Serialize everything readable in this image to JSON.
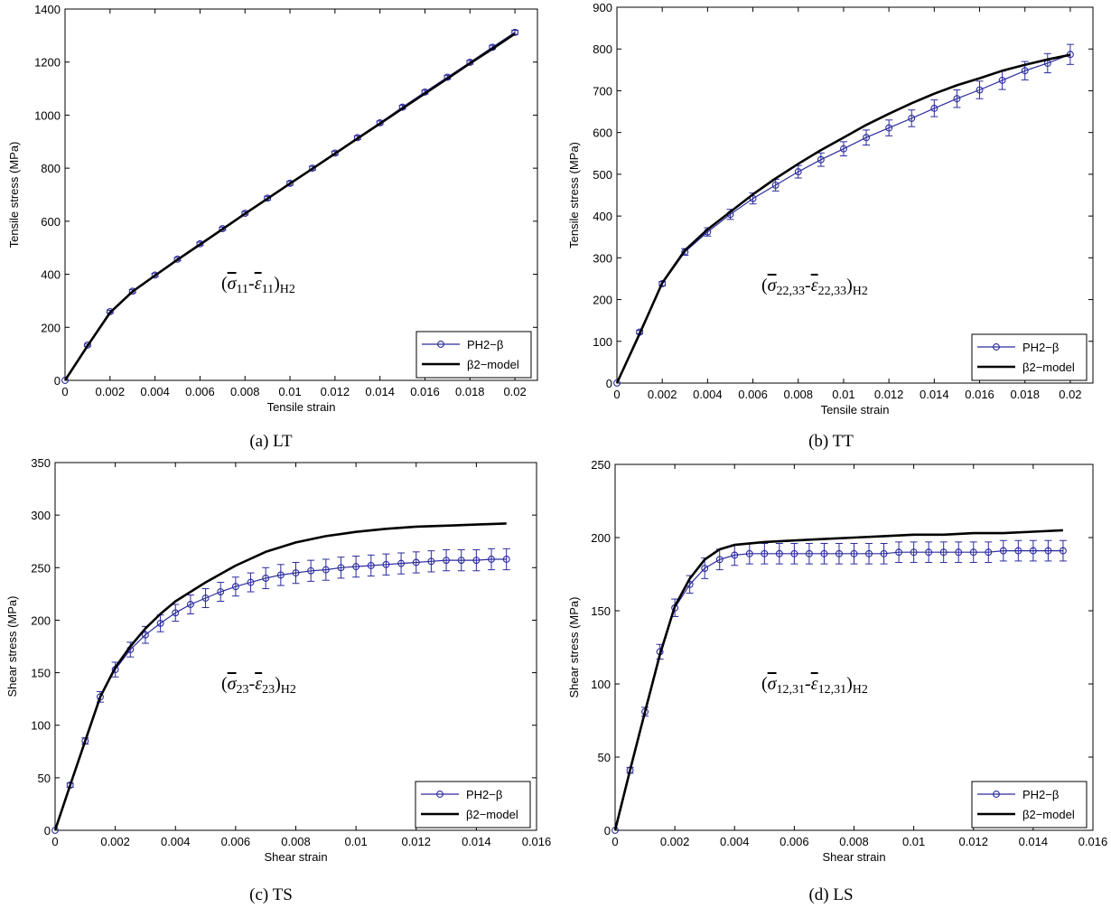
{
  "chart_data": [
    {
      "type": "line",
      "caption": "(a) LT",
      "xlabel": "Tensile strain",
      "ylabel": "Tensile stress (MPa)",
      "xlim": [
        0,
        0.021
      ],
      "ylim": [
        0,
        1400
      ],
      "xticks": [
        0,
        0.002,
        0.004,
        0.006,
        0.008,
        0.01,
        0.012,
        0.014,
        0.016,
        0.018,
        0.02
      ],
      "xtick_labels": [
        "0",
        "0.002",
        "0.004",
        "0.006",
        "0.008",
        "0.01",
        "0.012",
        "0.014",
        "0.016",
        "0.018",
        "0.02"
      ],
      "yticks": [
        0,
        200,
        400,
        600,
        800,
        1000,
        1200,
        1400
      ],
      "ytick_labels": [
        "0",
        "200",
        "400",
        "600",
        "800",
        "1000",
        "1200",
        "1400"
      ],
      "annotation": {
        "sigma": "σ",
        "eps": "ε",
        "sub": "11",
        "tail": "H2"
      },
      "legend": {
        "position": "bottom-right",
        "entries": [
          "PH2−β",
          "β2−model"
        ]
      },
      "series": [
        {
          "name": "PH2−β",
          "color": "#2b2b9e",
          "marker": "circle",
          "x": [
            0,
            0.001,
            0.002,
            0.003,
            0.004,
            0.005,
            0.006,
            0.007,
            0.008,
            0.009,
            0.01,
            0.011,
            0.012,
            0.013,
            0.014,
            0.015,
            0.016,
            0.017,
            0.018,
            0.019,
            0.02
          ],
          "y": [
            0,
            133,
            259,
            336,
            397,
            457,
            515,
            572,
            630,
            687,
            743,
            800,
            857,
            915,
            971,
            1030,
            1087,
            1143,
            1199,
            1256,
            1312
          ],
          "err": [
            0,
            4,
            5,
            6,
            6,
            6,
            6,
            6,
            6,
            7,
            7,
            7,
            7,
            7,
            7,
            7,
            7,
            7,
            7,
            7,
            8
          ]
        },
        {
          "name": "β2−model",
          "color": "#000000",
          "x": [
            0,
            0.001,
            0.002,
            0.003,
            0.004,
            0.005,
            0.006,
            0.007,
            0.008,
            0.009,
            0.01,
            0.011,
            0.012,
            0.013,
            0.014,
            0.015,
            0.016,
            0.017,
            0.018,
            0.019,
            0.02
          ],
          "y": [
            0,
            130,
            255,
            335,
            395,
            455,
            512,
            570,
            628,
            685,
            742,
            798,
            855,
            912,
            968,
            1025,
            1082,
            1138,
            1195,
            1250,
            1307
          ]
        }
      ]
    },
    {
      "type": "line",
      "caption": "(b) TT",
      "xlabel": "Tensile strain",
      "ylabel": "Tensile stress (MPa)",
      "xlim": [
        0,
        0.021
      ],
      "ylim": [
        0,
        900
      ],
      "xticks": [
        0,
        0.002,
        0.004,
        0.006,
        0.008,
        0.01,
        0.012,
        0.014,
        0.016,
        0.018,
        0.02
      ],
      "xtick_labels": [
        "0",
        "0.002",
        "0.004",
        "0.006",
        "0.008",
        "0.01",
        "0.012",
        "0.014",
        "0.016",
        "0.018",
        "0.02"
      ],
      "yticks": [
        0,
        100,
        200,
        300,
        400,
        500,
        600,
        700,
        800,
        900
      ],
      "ytick_labels": [
        "0",
        "100",
        "200",
        "300",
        "400",
        "500",
        "600",
        "700",
        "800",
        "900"
      ],
      "annotation": {
        "sigma": "σ",
        "eps": "ε",
        "sub": "22,33",
        "tail": "H2"
      },
      "legend": {
        "position": "bottom-right",
        "entries": [
          "PH2−β",
          "β2−model"
        ]
      },
      "series": [
        {
          "name": "PH2−β",
          "color": "#2b2b9e",
          "marker": "circle",
          "x": [
            0,
            0.001,
            0.002,
            0.003,
            0.004,
            0.005,
            0.006,
            0.007,
            0.008,
            0.009,
            0.01,
            0.011,
            0.012,
            0.013,
            0.014,
            0.015,
            0.016,
            0.017,
            0.018,
            0.019,
            0.02
          ],
          "y": [
            0,
            122,
            238,
            314,
            362,
            404,
            442,
            474,
            506,
            535,
            561,
            588,
            611,
            634,
            658,
            681,
            702,
            725,
            748,
            766,
            787
          ],
          "err": [
            0,
            4,
            5,
            8,
            10,
            12,
            13,
            14,
            15,
            16,
            17,
            18,
            19,
            20,
            20,
            21,
            21,
            22,
            22,
            23,
            24
          ]
        },
        {
          "name": "β2−model",
          "color": "#000000",
          "x": [
            0,
            0.001,
            0.002,
            0.003,
            0.004,
            0.005,
            0.006,
            0.007,
            0.008,
            0.009,
            0.01,
            0.011,
            0.012,
            0.013,
            0.014,
            0.015,
            0.016,
            0.017,
            0.018,
            0.019,
            0.02
          ],
          "y": [
            0,
            118,
            240,
            318,
            368,
            410,
            452,
            490,
            525,
            558,
            588,
            618,
            645,
            670,
            693,
            713,
            730,
            748,
            762,
            775,
            786
          ]
        }
      ]
    },
    {
      "type": "line",
      "caption": "(c) TS",
      "xlabel": "Shear strain",
      "ylabel": "Shear stress (MPa)",
      "xlim": [
        0,
        0.016
      ],
      "ylim": [
        0,
        350
      ],
      "xticks": [
        0,
        0.002,
        0.004,
        0.006,
        0.008,
        0.01,
        0.012,
        0.014,
        0.016
      ],
      "xtick_labels": [
        "0",
        "0.002",
        "0.004",
        "0.006",
        "0.008",
        "0.01",
        "0.012",
        "0.014",
        "0.016"
      ],
      "yticks": [
        0,
        50,
        100,
        150,
        200,
        250,
        300,
        350
      ],
      "ytick_labels": [
        "0",
        "50",
        "100",
        "150",
        "200",
        "250",
        "300",
        "350"
      ],
      "annotation": {
        "sigma": "σ",
        "eps": "ε",
        "sub": "23",
        "tail": "H2"
      },
      "legend": {
        "position": "bottom-right",
        "entries": [
          "PH2−β",
          "β2−model"
        ]
      },
      "series": [
        {
          "name": "PH2−β",
          "color": "#2b2b9e",
          "marker": "circle",
          "x": [
            0,
            0.0005,
            0.001,
            0.0015,
            0.002,
            0.0025,
            0.003,
            0.0035,
            0.004,
            0.0045,
            0.005,
            0.0055,
            0.006,
            0.0065,
            0.007,
            0.0075,
            0.008,
            0.0085,
            0.009,
            0.0095,
            0.01,
            0.0105,
            0.011,
            0.0115,
            0.012,
            0.0125,
            0.013,
            0.0135,
            0.014,
            0.0145,
            0.015
          ],
          "y": [
            0,
            43,
            85,
            127,
            153,
            172,
            186,
            197,
            207,
            215,
            221,
            227,
            232,
            236,
            240,
            243,
            245,
            247,
            248,
            250,
            251,
            252,
            253,
            254,
            255,
            256,
            257,
            257,
            257,
            258,
            258
          ],
          "err": [
            0,
            2,
            3,
            5,
            7,
            7,
            8,
            8,
            8,
            9,
            9,
            9,
            9,
            9,
            10,
            10,
            10,
            10,
            10,
            10,
            10,
            10,
            10,
            10,
            10,
            10,
            10,
            10,
            10,
            10,
            10
          ]
        },
        {
          "name": "β2−model",
          "color": "#000000",
          "x": [
            0,
            0.0005,
            0.001,
            0.0015,
            0.002,
            0.0025,
            0.003,
            0.0035,
            0.004,
            0.005,
            0.006,
            0.007,
            0.008,
            0.009,
            0.01,
            0.011,
            0.012,
            0.013,
            0.014,
            0.015
          ],
          "y": [
            0,
            43,
            85,
            127,
            155,
            175,
            192,
            206,
            218,
            236,
            252,
            265,
            274,
            280,
            284,
            287,
            289,
            290,
            291,
            292
          ]
        }
      ]
    },
    {
      "type": "line",
      "caption": "(d) LS",
      "xlabel": "Shear strain",
      "ylabel": "Shear stress (MPa)",
      "xlim": [
        0,
        0.016
      ],
      "ylim": [
        0,
        250
      ],
      "xticks": [
        0,
        0.002,
        0.004,
        0.006,
        0.008,
        0.01,
        0.012,
        0.014,
        0.016
      ],
      "xtick_labels": [
        "0",
        "0.002",
        "0.004",
        "0.006",
        "0.008",
        "0.01",
        "0.012",
        "0.014",
        "0.016"
      ],
      "yticks": [
        0,
        50,
        100,
        150,
        200,
        250
      ],
      "ytick_labels": [
        "0",
        "50",
        "100",
        "150",
        "200",
        "250"
      ],
      "annotation": {
        "sigma": "σ",
        "eps": "ε",
        "sub": "12,31",
        "tail": "H2"
      },
      "legend": {
        "position": "bottom-right",
        "entries": [
          "PH2−β",
          "β2−model"
        ]
      },
      "series": [
        {
          "name": "PH2−β",
          "color": "#2b2b9e",
          "marker": "circle",
          "x": [
            0,
            0.0005,
            0.001,
            0.0015,
            0.002,
            0.0025,
            0.003,
            0.0035,
            0.004,
            0.0045,
            0.005,
            0.0055,
            0.006,
            0.0065,
            0.007,
            0.0075,
            0.008,
            0.0085,
            0.009,
            0.0095,
            0.01,
            0.0105,
            0.011,
            0.0115,
            0.012,
            0.0125,
            0.013,
            0.0135,
            0.014,
            0.0145,
            0.015
          ],
          "y": [
            0,
            41,
            81,
            122,
            152,
            168,
            179,
            185,
            188,
            189,
            189,
            189,
            189,
            189,
            189,
            189,
            189,
            189,
            189,
            190,
            190,
            190,
            190,
            190,
            190,
            190,
            191,
            191,
            191,
            191,
            191
          ],
          "err": [
            0,
            2,
            3,
            5,
            6,
            6,
            7,
            7,
            7,
            7,
            7,
            7,
            7,
            7,
            7,
            7,
            7,
            7,
            7,
            7,
            7,
            7,
            7,
            7,
            7,
            7,
            7,
            7,
            7,
            7,
            7
          ]
        },
        {
          "name": "β2−model",
          "color": "#000000",
          "x": [
            0,
            0.0005,
            0.001,
            0.0015,
            0.002,
            0.0025,
            0.003,
            0.0035,
            0.004,
            0.005,
            0.006,
            0.007,
            0.008,
            0.009,
            0.01,
            0.011,
            0.012,
            0.013,
            0.014,
            0.015
          ],
          "y": [
            0,
            41,
            81,
            120,
            153,
            172,
            185,
            192,
            195,
            197,
            198,
            199,
            200,
            201,
            202,
            202,
            203,
            203,
            204,
            205
          ]
        }
      ]
    }
  ]
}
